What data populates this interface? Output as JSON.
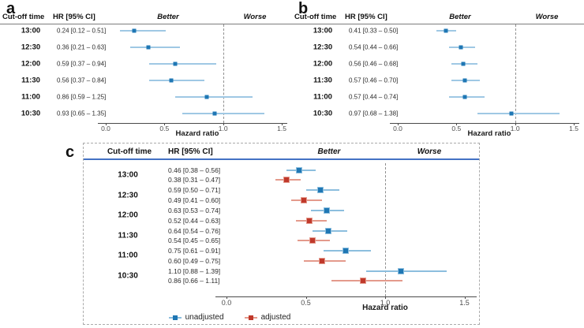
{
  "chart_data": [
    {
      "type": "scatter",
      "subtype": "forest-plot",
      "panel": "a",
      "columns": {
        "time": "Cut-off time",
        "hr": "HR [95% CI]"
      },
      "region_labels": {
        "better": "Better",
        "worse": "Worse"
      },
      "xlabel": "Hazard ratio",
      "xlim": [
        0.0,
        1.5
      ],
      "xticks": [
        "0.0",
        "0.5",
        "1.0",
        "1.5"
      ],
      "refline": 1.0,
      "times": [
        "13:00",
        "12:30",
        "12:00",
        "11:30",
        "11:00",
        "10:30"
      ],
      "series": [
        {
          "name": "HR",
          "marker_color": "#1f77b4",
          "ci_color": "#9fc8e4",
          "rows": [
            {
              "label": "0.24 [0.12 – 0.51]",
              "hr": 0.24,
              "lo": 0.12,
              "hi": 0.51
            },
            {
              "label": "0.36 [0.21 – 0.63]",
              "hr": 0.36,
              "lo": 0.21,
              "hi": 0.63
            },
            {
              "label": "0.59 [0.37 – 0.94]",
              "hr": 0.59,
              "lo": 0.37,
              "hi": 0.94
            },
            {
              "label": "0.56 [0.37 – 0.84]",
              "hr": 0.56,
              "lo": 0.37,
              "hi": 0.84
            },
            {
              "label": "0.86 [0.59 – 1.25]",
              "hr": 0.86,
              "lo": 0.59,
              "hi": 1.25
            },
            {
              "label": "0.93 [0.65 – 1.35]",
              "hr": 0.93,
              "lo": 0.65,
              "hi": 1.35
            }
          ]
        }
      ]
    },
    {
      "type": "scatter",
      "subtype": "forest-plot",
      "panel": "b",
      "columns": {
        "time": "Cut-off time",
        "hr": "HR [95% CI]"
      },
      "region_labels": {
        "better": "Better",
        "worse": "Worse"
      },
      "xlabel": "Hazard ratio",
      "xlim": [
        0.0,
        1.5
      ],
      "xticks": [
        "0.0",
        "0.5",
        "1.0",
        "1.5"
      ],
      "refline": 1.0,
      "times": [
        "13:00",
        "12:30",
        "12:00",
        "11:30",
        "11:00",
        "10:30"
      ],
      "series": [
        {
          "name": "HR",
          "marker_color": "#1f77b4",
          "ci_color": "#9fc8e4",
          "rows": [
            {
              "label": "0.41 [0.33 – 0.50]",
              "hr": 0.41,
              "lo": 0.33,
              "hi": 0.5
            },
            {
              "label": "0.54 [0.44 – 0.66]",
              "hr": 0.54,
              "lo": 0.44,
              "hi": 0.66
            },
            {
              "label": "0.56 [0.46 – 0.68]",
              "hr": 0.56,
              "lo": 0.46,
              "hi": 0.68
            },
            {
              "label": "0.57 [0.46 – 0.70]",
              "hr": 0.57,
              "lo": 0.46,
              "hi": 0.7
            },
            {
              "label": "0.57 [0.44 – 0.74]",
              "hr": 0.57,
              "lo": 0.44,
              "hi": 0.74
            },
            {
              "label": "0.97 [0.68 – 1.38]",
              "hr": 0.97,
              "lo": 0.68,
              "hi": 1.38
            }
          ]
        }
      ]
    },
    {
      "type": "scatter",
      "subtype": "forest-plot",
      "panel": "c",
      "columns": {
        "time": "Cut-off time",
        "hr": "HR [95% CI]"
      },
      "region_labels": {
        "better": "Better",
        "worse": "Worse"
      },
      "xlabel": "Hazard ratio",
      "xlim": [
        0.0,
        1.5
      ],
      "xticks": [
        "0.0",
        "0.5",
        "1.0",
        "1.5"
      ],
      "refline": 1.0,
      "legend_position": "bottom",
      "times": [
        "13:00",
        "12:30",
        "12:00",
        "11:30",
        "11:00",
        "10:30"
      ],
      "series": [
        {
          "name": "unadjusted",
          "marker_color": "#1f77b4",
          "ci_color": "#8cbede",
          "rows": [
            {
              "label": "0.46 [0.38 – 0.56]",
              "hr": 0.46,
              "lo": 0.38,
              "hi": 0.56
            },
            {
              "label": "0.59 [0.50 – 0.71]",
              "hr": 0.59,
              "lo": 0.5,
              "hi": 0.71
            },
            {
              "label": "0.63 [0.53 – 0.74]",
              "hr": 0.63,
              "lo": 0.53,
              "hi": 0.74
            },
            {
              "label": "0.64 [0.54 – 0.76]",
              "hr": 0.64,
              "lo": 0.54,
              "hi": 0.76
            },
            {
              "label": "0.75 [0.61 – 0.91]",
              "hr": 0.75,
              "lo": 0.61,
              "hi": 0.91
            },
            {
              "label": "1.10 [0.88 – 1.39]",
              "hr": 1.1,
              "lo": 0.88,
              "hi": 1.39
            }
          ]
        },
        {
          "name": "adjusted",
          "marker_color": "#c0392b",
          "ci_color": "#e49a8c",
          "rows": [
            {
              "label": "0.38 [0.31 – 0.47]",
              "hr": 0.38,
              "lo": 0.31,
              "hi": 0.47
            },
            {
              "label": "0.49 [0.41 – 0.60]",
              "hr": 0.49,
              "lo": 0.41,
              "hi": 0.6
            },
            {
              "label": "0.52 [0.44 – 0.63]",
              "hr": 0.52,
              "lo": 0.44,
              "hi": 0.63
            },
            {
              "label": "0.54 [0.45 – 0.65]",
              "hr": 0.54,
              "lo": 0.45,
              "hi": 0.65
            },
            {
              "label": "0.60 [0.49 – 0.75]",
              "hr": 0.6,
              "lo": 0.49,
              "hi": 0.75
            },
            {
              "label": "0.86 [0.66 – 1.11]",
              "hr": 0.86,
              "lo": 0.66,
              "hi": 1.11
            }
          ]
        }
      ]
    }
  ]
}
